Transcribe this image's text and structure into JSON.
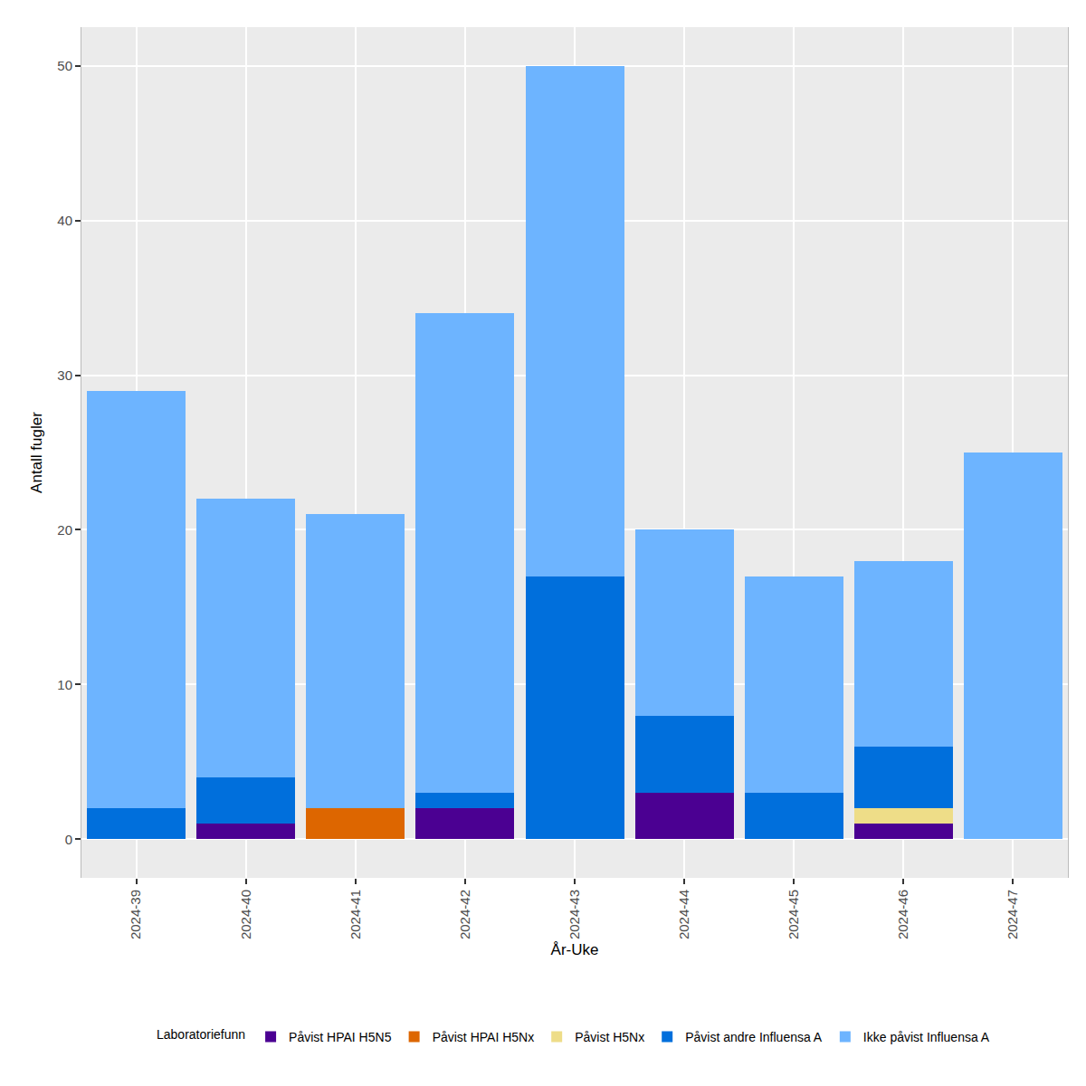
{
  "chart_data": {
    "type": "bar",
    "stacked": true,
    "x_label": "År-Uke",
    "y_label": "Antall fugler",
    "legend_title": "Laboratoriefunn",
    "legend": "bottom",
    "grid": true,
    "categories": [
      "2024-39",
      "2024-40",
      "2024-41",
      "2024-42",
      "2024-43",
      "2024-44",
      "2024-45",
      "2024-46",
      "2024-47"
    ],
    "series": [
      {
        "name": "Påvist HPAI H5N5",
        "color": "#4B0092",
        "values": [
          0,
          1,
          0,
          2,
          0,
          3,
          0,
          1,
          0
        ]
      },
      {
        "name": "Påvist HPAI H5Nx",
        "color": "#DD6600",
        "values": [
          0,
          0,
          2,
          0,
          0,
          0,
          0,
          0,
          0
        ]
      },
      {
        "name": "Påvist H5Nx",
        "color": "#EEDD88",
        "values": [
          0,
          0,
          0,
          0,
          0,
          0,
          0,
          1,
          0
        ]
      },
      {
        "name": "Påvist andre Influensa A",
        "color": "#006FDC",
        "values": [
          2,
          3,
          0,
          1,
          17,
          5,
          3,
          4,
          0
        ]
      },
      {
        "name": "Ikke påvist Influensa A",
        "color": "#6DB4FF",
        "values": [
          27,
          18,
          19,
          31,
          33,
          12,
          14,
          12,
          25
        ]
      }
    ],
    "ylim": [
      -2.5,
      52.5
    ],
    "yticks": [
      0,
      10,
      20,
      30,
      40,
      50
    ]
  }
}
